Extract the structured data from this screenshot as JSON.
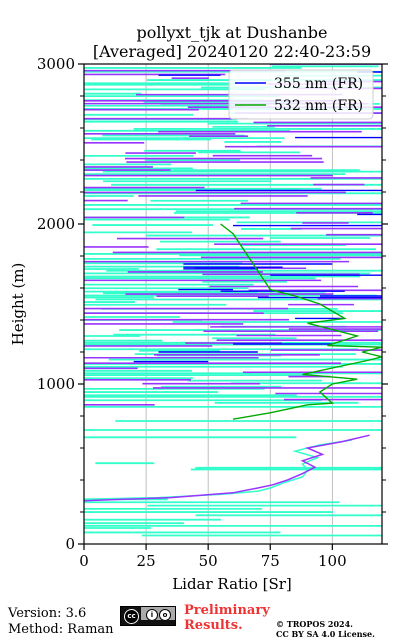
{
  "chart_data": {
    "type": "line",
    "title_line1": "pollyxt_tjk at Dushanbe",
    "title_line2": "[Averaged] 20240120 22:40-23:59",
    "xlabel": "Lidar Ratio [Sr]",
    "ylabel": "Height (m)",
    "xlim": [
      0,
      120
    ],
    "ylim": [
      0,
      3000
    ],
    "x_ticks": [
      0,
      25,
      50,
      75,
      100
    ],
    "y_ticks": [
      0,
      1000,
      2000,
      3000
    ],
    "y_minor_step": 200,
    "grid": "vertical",
    "legend_position": "top-right",
    "legend": [
      {
        "label": "355 nm (FR)",
        "color": "#0000ff"
      },
      {
        "label": "532 nm (FR)",
        "color": "#00aa00"
      }
    ],
    "series": [
      {
        "name": "355 nm (FR)",
        "color": "#0000ff",
        "y": [
          40,
          140,
          190,
          1140,
          1200,
          1250,
          1410,
          1540,
          1550,
          1580,
          1590,
          1680,
          1720,
          1730,
          1750,
          1850,
          1990,
          2010,
          2060,
          2120,
          2210,
          2280,
          2290,
          2540,
          2930,
          2950
        ],
        "x": [
          120,
          120,
          120,
          20,
          70,
          60,
          85,
          120,
          95,
          55,
          38,
          75,
          70,
          80,
          40,
          120,
          120,
          120,
          110,
          120,
          120,
          120,
          120,
          85,
          30,
          110
        ],
        "x_end": [
          120,
          120,
          120,
          50,
          30,
          100,
          105,
          70,
          120,
          105,
          60,
          120,
          40,
          40,
          100,
          120,
          60,
          120,
          120,
          120,
          45,
          120,
          120,
          120,
          55,
          120
        ]
      },
      {
        "name": "532 nm (FR)",
        "color": "#00aa00",
        "y": [
          780,
          820,
          870,
          880,
          950,
          1000,
          1030,
          1060,
          1100,
          1150,
          1170,
          1200,
          1230,
          1240,
          1300,
          1380,
          1410,
          1500,
          1550,
          1590,
          1940,
          2000
        ],
        "x": [
          60,
          75,
          90,
          100,
          95,
          100,
          110,
          88,
          100,
          115,
          120,
          112,
          120,
          98,
          110,
          90,
          105,
          95,
          85,
          75,
          60,
          55
        ]
      }
    ],
    "profile_aerosol_532_points": [
      [
        280,
        0
      ],
      [
        290,
        30
      ],
      [
        310,
        55
      ],
      [
        330,
        70
      ],
      [
        350,
        75
      ],
      [
        380,
        80
      ],
      [
        420,
        88
      ],
      [
        460,
        90
      ],
      [
        500,
        88
      ],
      [
        540,
        94
      ],
      [
        580,
        85
      ],
      [
        620,
        95
      ],
      [
        650,
        108
      ]
    ],
    "profile_aerosol_355_points": [
      [
        270,
        0
      ],
      [
        290,
        35
      ],
      [
        320,
        60
      ],
      [
        350,
        70
      ],
      [
        370,
        76
      ],
      [
        400,
        82
      ],
      [
        440,
        88
      ],
      [
        480,
        93
      ],
      [
        520,
        88
      ],
      [
        560,
        96
      ],
      [
        600,
        90
      ],
      [
        640,
        104
      ],
      [
        680,
        115
      ]
    ]
  },
  "footer": {
    "version": "Version: 3.6",
    "method": "Method: Raman",
    "prelim_line1": "Preliminary",
    "prelim_line2": "Results.",
    "tropos_line1": "© TROPOS 2024.",
    "tropos_line2": "CC BY SA 4.0 License."
  },
  "colors": {
    "p355": "#0000ff",
    "p532": "#00aa00",
    "purple": "#9933ff",
    "aqua": "#33ffcc"
  }
}
